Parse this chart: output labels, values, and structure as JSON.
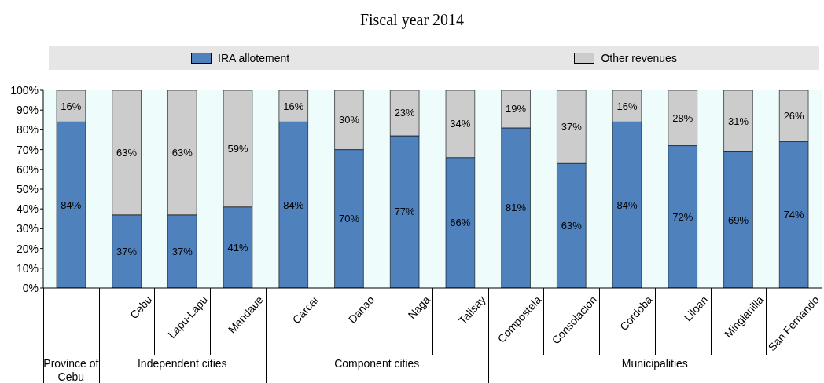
{
  "chart_data": {
    "type": "bar",
    "title": "Fiscal year 2014",
    "stacked": true,
    "categories": [
      null,
      "Cebu",
      "Lapu-Lapu",
      "Mandaue",
      "Carcar",
      "Danao",
      "Naga",
      "Talisay",
      "Compostela",
      "Consolacion",
      "Cordoba",
      "Liloan",
      "Minglanilla",
      "San Fernando"
    ],
    "series": [
      {
        "name": "IRA allotement",
        "color": "#4f81bd",
        "values": [
          84,
          37,
          37,
          41,
          84,
          70,
          77,
          66,
          81,
          63,
          84,
          72,
          69,
          74
        ],
        "value_labels": [
          "84%",
          "37%",
          "37%",
          "41%",
          "84%",
          "70%",
          "77%",
          "66%",
          "81%",
          "63%",
          "84%",
          "72%",
          "69%",
          "74%"
        ]
      },
      {
        "name": "Other revenues",
        "color": "#cccccc",
        "values": [
          16,
          63,
          63,
          59,
          16,
          30,
          23,
          34,
          19,
          37,
          16,
          28,
          31,
          26
        ],
        "value_labels": [
          "16%",
          "63%",
          "63%",
          "59%",
          "16%",
          "30%",
          "23%",
          "34%",
          "19%",
          "37%",
          "16%",
          "28%",
          "31%",
          "26%"
        ]
      }
    ],
    "ylim": [
      0,
      100
    ],
    "yticks": [
      {
        "value": 0,
        "label": "0%"
      },
      {
        "value": 10,
        "label": "10%"
      },
      {
        "value": 20,
        "label": "20%"
      },
      {
        "value": 30,
        "label": "30%"
      },
      {
        "value": 40,
        "label": "40%"
      },
      {
        "value": 50,
        "label": "50%"
      },
      {
        "value": 60,
        "label": "60%"
      },
      {
        "value": 70,
        "label": "70%"
      },
      {
        "value": 80,
        "label": "80%"
      },
      {
        "value": 90,
        "label": "90%"
      },
      {
        "value": 100,
        "label": "100%"
      }
    ],
    "legend": "top",
    "annotations": [
      "Province of Cebu",
      "Independent cities",
      "Component cities",
      "Municipalities"
    ]
  }
}
